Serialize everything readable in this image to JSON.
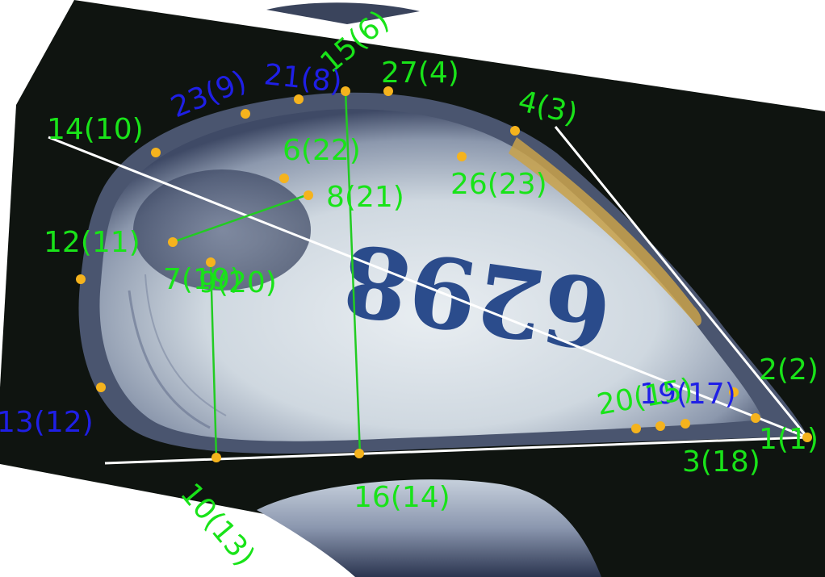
{
  "colors": {
    "background_photo": "#0f1410",
    "shell_body": "#d4dbe2",
    "shell_edge": "#5b6680",
    "ink_number": "#1c3f84",
    "landmark_dot": "#f5b31d",
    "measure_line_white": "#ffffff",
    "measure_line_green": "#22cc22",
    "label_green": "#19e319",
    "label_blue": "#1f1fe6"
  },
  "specimen_number": "6298",
  "landmarks": [
    {
      "name": "landmark-1",
      "label": "1(1)",
      "color": "green"
    },
    {
      "name": "landmark-2",
      "label": "2(2)",
      "color": "green"
    },
    {
      "name": "landmark-3",
      "label": "3(18)",
      "color": "green"
    },
    {
      "name": "landmark-4",
      "label": "4(3)",
      "color": "green"
    },
    {
      "name": "landmark-6",
      "label": "6(22)",
      "color": "green"
    },
    {
      "name": "landmark-7",
      "label": "7(19)",
      "color": "green"
    },
    {
      "name": "landmark-8",
      "label": "8(21)",
      "color": "green"
    },
    {
      "name": "landmark-9",
      "label": "9(20)",
      "color": "green"
    },
    {
      "name": "landmark-10",
      "label": "10(13)",
      "color": "green"
    },
    {
      "name": "landmark-12",
      "label": "12(11)",
      "color": "green"
    },
    {
      "name": "landmark-13",
      "label": "13(12)",
      "color": "blue"
    },
    {
      "name": "landmark-14",
      "label": "14(10)",
      "color": "green"
    },
    {
      "name": "landmark-15",
      "label": "15(6)",
      "color": "green"
    },
    {
      "name": "landmark-16",
      "label": "16(14)",
      "color": "green"
    },
    {
      "name": "landmark-19",
      "label": "19(17)",
      "color": "blue"
    },
    {
      "name": "landmark-20",
      "label": "20(15)",
      "color": "green"
    },
    {
      "name": "landmark-21",
      "label": "21(8)",
      "color": "blue"
    },
    {
      "name": "landmark-23",
      "label": "23(9)",
      "color": "blue"
    },
    {
      "name": "landmark-26",
      "label": "26(23)",
      "color": "green"
    },
    {
      "name": "landmark-27",
      "label": "27(4)",
      "color": "green"
    }
  ]
}
